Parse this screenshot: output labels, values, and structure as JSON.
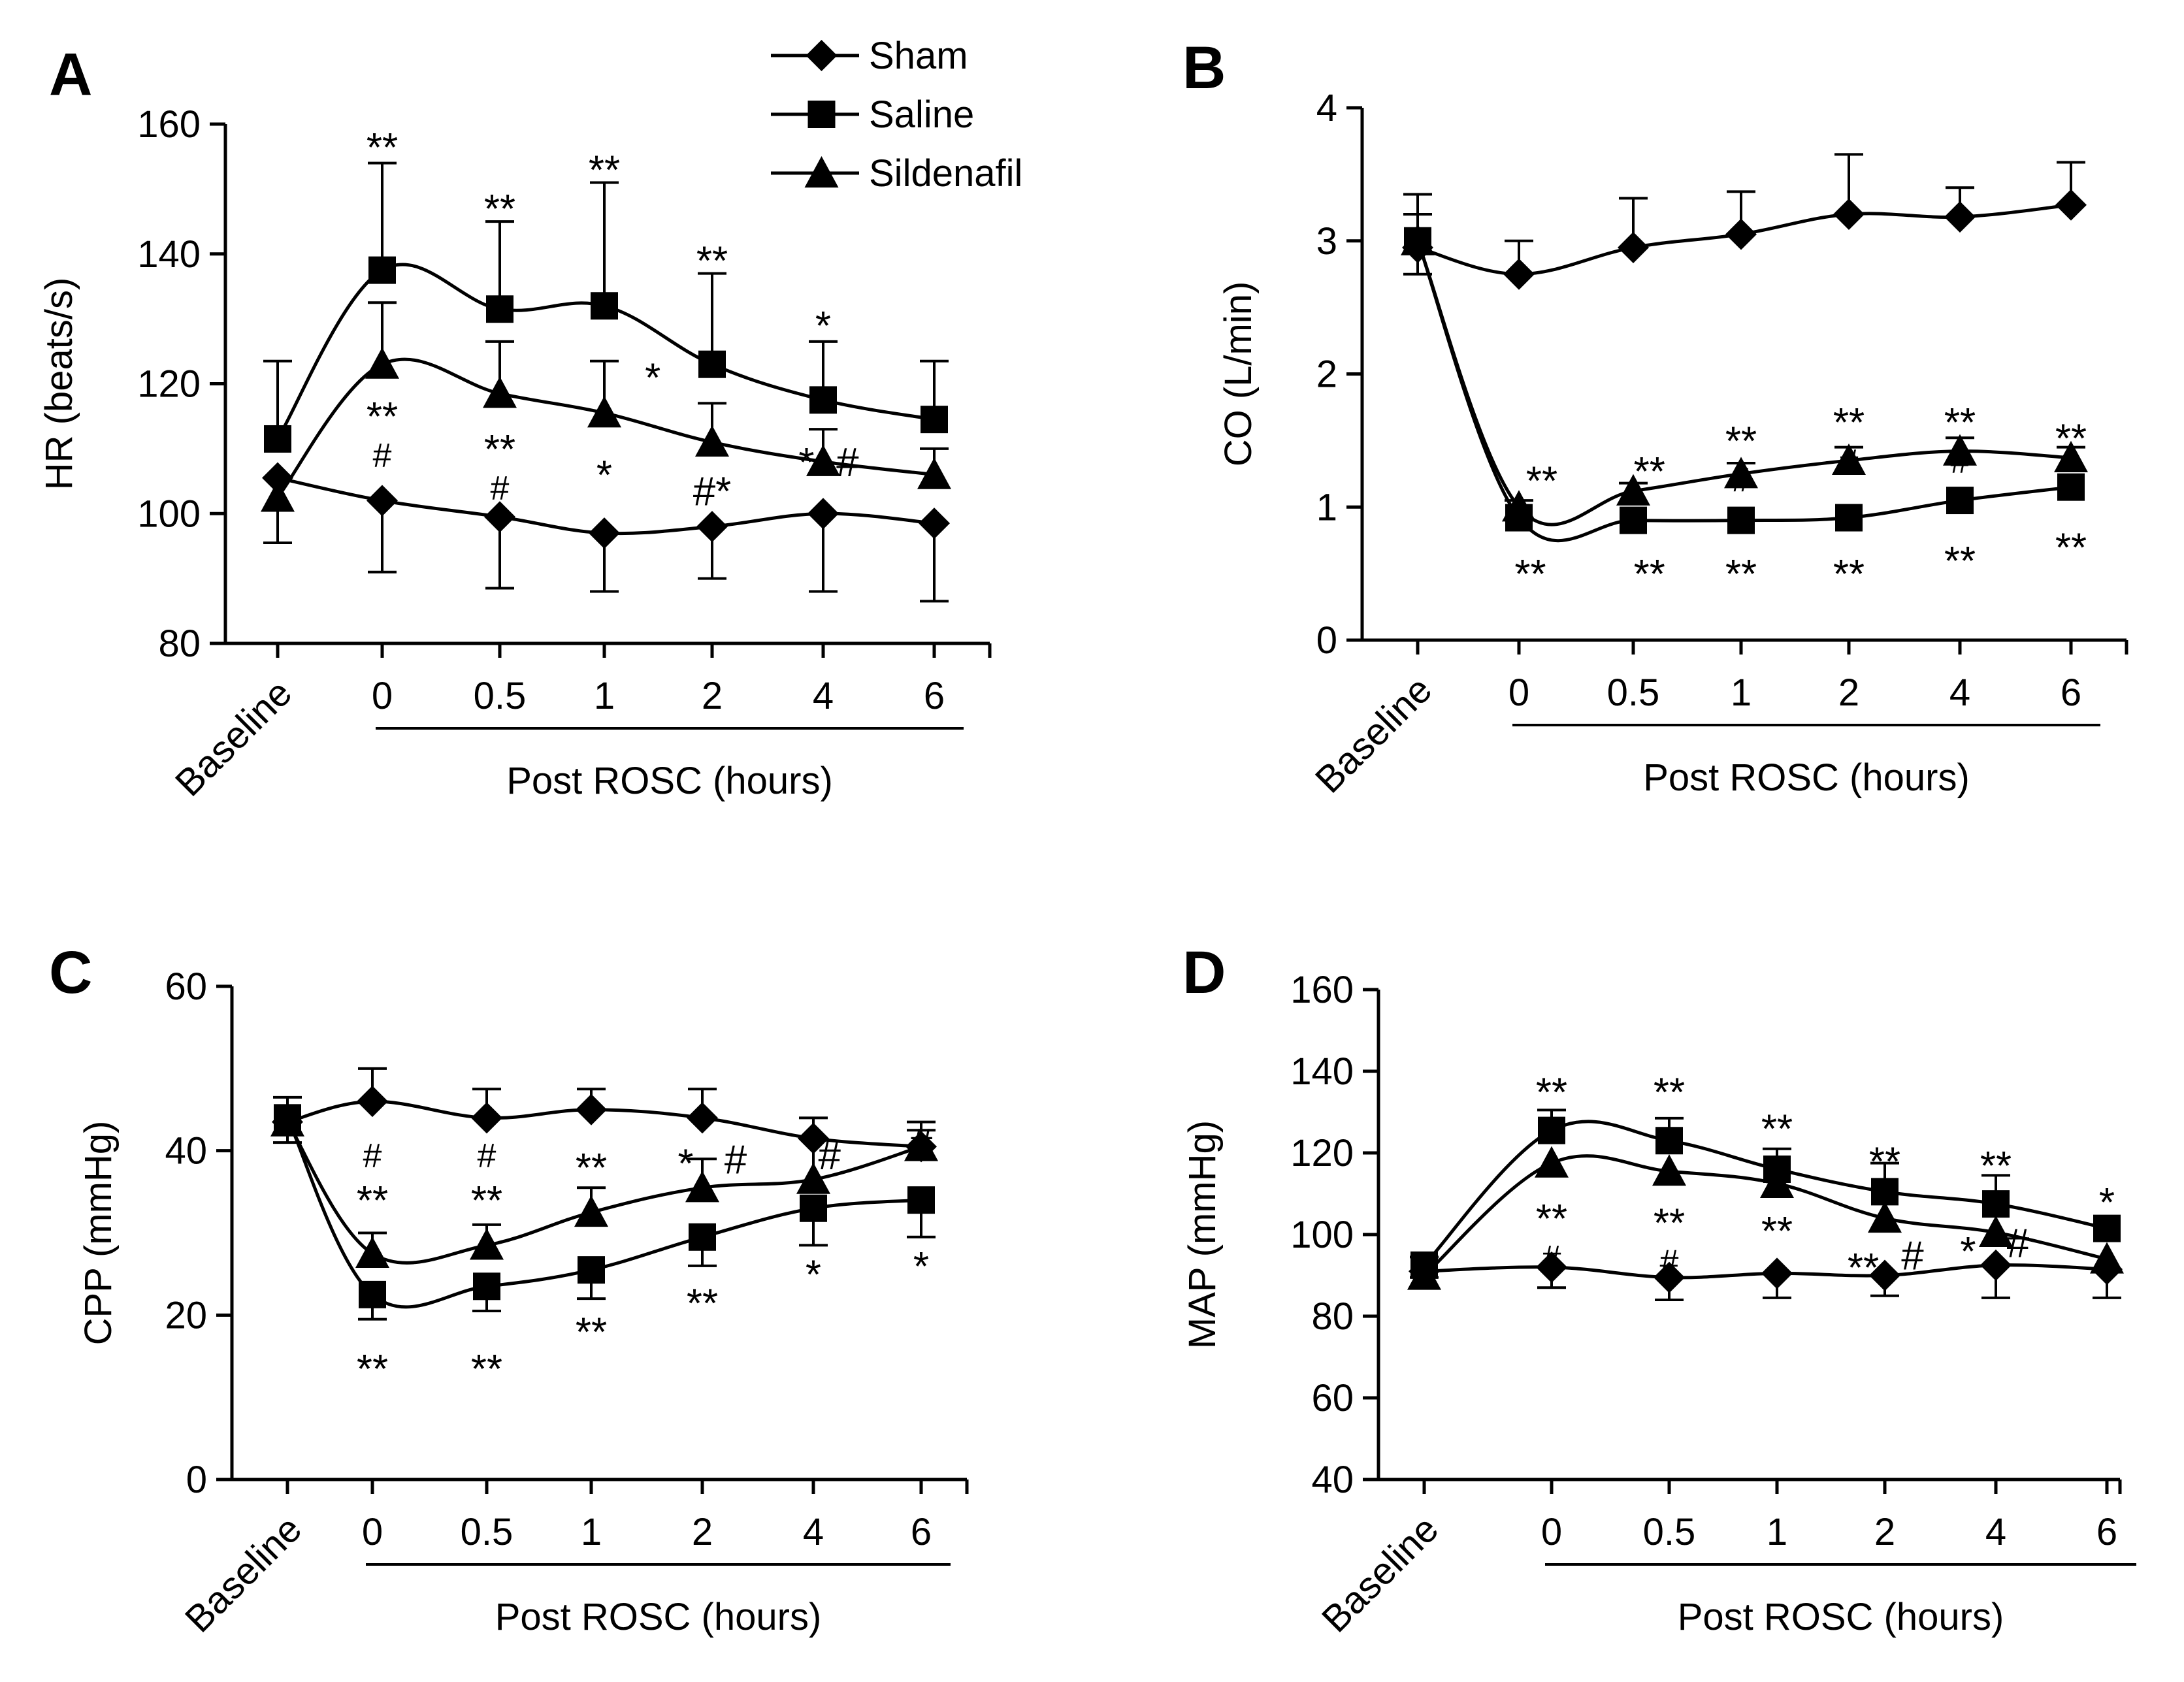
{
  "legend": {
    "entries": [
      {
        "name": "Sham",
        "marker": "diamond"
      },
      {
        "name": "Saline",
        "marker": "square"
      },
      {
        "name": "Sildenafil",
        "marker": "triangle"
      }
    ]
  },
  "chart_data": [
    {
      "id": "A",
      "type": "line",
      "panel_letter": "A",
      "ylabel": "HR (beats/s)",
      "xlabel": "Post ROSC (hours)",
      "categories": [
        "Baseline",
        "0",
        "0.5",
        "1",
        "2",
        "4",
        "6"
      ],
      "ylim": [
        80,
        160
      ],
      "yticks": [
        80,
        100,
        120,
        140,
        160
      ],
      "series": [
        {
          "name": "Sham",
          "marker": "diamond",
          "values": [
            105.5,
            102,
            99.5,
            97,
            98,
            100,
            98.5
          ],
          "errors": [
            [
              -10,
              0
            ],
            [
              -11,
              0
            ],
            [
              -11,
              0
            ],
            [
              -9,
              0
            ],
            [
              -8,
              0
            ],
            [
              -12,
              0
            ],
            [
              -12,
              0
            ]
          ]
        },
        {
          "name": "Saline",
          "marker": "square",
          "values": [
            111.5,
            137.5,
            131.5,
            132,
            123,
            117.5,
            114.5
          ],
          "errors": [
            [
              0,
              12
            ],
            [
              0,
              16.5
            ],
            [
              0,
              13.5
            ],
            [
              0,
              19
            ],
            [
              0,
              14
            ],
            [
              0,
              9
            ],
            [
              0,
              9
            ]
          ]
        },
        {
          "name": "Sildenafil",
          "marker": "triangle",
          "values": [
            102.5,
            123,
            118.5,
            115.5,
            111,
            108,
            106
          ],
          "errors": [
            [
              0,
              0
            ],
            [
              0,
              9.5
            ],
            [
              0,
              8
            ],
            [
              0,
              8
            ],
            [
              0,
              6
            ],
            [
              0,
              5
            ],
            [
              0,
              4
            ]
          ]
        }
      ],
      "annotations": [
        {
          "text": "**",
          "cat": 1,
          "y": 156.5
        },
        {
          "text": "**",
          "cat": 2,
          "y": 147
        },
        {
          "text": "**",
          "cat": 3,
          "y": 153
        },
        {
          "text": "**",
          "cat": 4,
          "y": 139
        },
        {
          "text": "*",
          "cat": 5,
          "y": 129
        },
        {
          "text": "*",
          "cat": 3.45,
          "y": 121
        },
        {
          "text": "**",
          "cat": 1,
          "y": 115,
          "sub": "#"
        },
        {
          "text": "**",
          "cat": 2,
          "y": 110,
          "sub": "#"
        },
        {
          "text": "*",
          "cat": 3,
          "y": 106
        },
        {
          "text": "#*",
          "cat": 4,
          "y": 103.5
        },
        {
          "text": "*",
          "cat": 4.85,
          "y": 108
        },
        {
          "text": "#",
          "cat": 5.22,
          "y": 108
        }
      ]
    },
    {
      "id": "B",
      "type": "line",
      "panel_letter": "B",
      "ylabel": "CO (L/min)",
      "xlabel": "Post ROSC (hours)",
      "categories": [
        "Baseline",
        "0",
        "0.5",
        "1",
        "2",
        "4",
        "6"
      ],
      "ylim": [
        0,
        4
      ],
      "yticks": [
        0,
        1,
        2,
        3,
        4
      ],
      "series": [
        {
          "name": "Sham",
          "marker": "diamond",
          "values": [
            2.95,
            2.75,
            2.95,
            3.05,
            3.2,
            3.18,
            3.27
          ],
          "errors": [
            [
              0,
              0.4
            ],
            [
              0,
              0.25
            ],
            [
              0,
              0.37
            ],
            [
              0,
              0.32
            ],
            [
              0,
              0.45
            ],
            [
              0,
              0.22
            ],
            [
              0,
              0.32
            ]
          ]
        },
        {
          "name": "Saline",
          "marker": "square",
          "values": [
            3.0,
            0.92,
            0.9,
            0.9,
            0.92,
            1.05,
            1.15
          ],
          "errors": [
            [
              -0.25,
              0.2
            ],
            [
              0,
              0
            ],
            [
              0,
              0
            ],
            [
              0,
              0
            ],
            [
              0,
              0
            ],
            [
              0,
              0
            ],
            [
              0,
              0
            ]
          ]
        },
        {
          "name": "Sildenafil",
          "marker": "triangle",
          "values": [
            3.0,
            1.0,
            1.12,
            1.25,
            1.35,
            1.42,
            1.37
          ],
          "errors": [
            [
              0,
              0
            ],
            [
              0,
              0.05
            ],
            [
              0,
              0.06
            ],
            [
              0,
              0.08
            ],
            [
              0,
              0.1
            ],
            [
              0,
              0.1
            ],
            [
              0,
              0.08
            ]
          ]
        }
      ],
      "annotations": [
        {
          "text": "**",
          "cat": 1.2,
          "y": 1.2
        },
        {
          "text": "**",
          "cat": 2.15,
          "y": 1.27
        },
        {
          "text": "**",
          "cat": 3,
          "y": 1.5,
          "sub": "#"
        },
        {
          "text": "**",
          "cat": 4,
          "y": 1.64,
          "sub": "#"
        },
        {
          "text": "**",
          "cat": 5,
          "y": 1.64,
          "sub": "#"
        },
        {
          "text": "**",
          "cat": 6,
          "y": 1.52
        },
        {
          "text": "**",
          "cat": 1.1,
          "y": 0.5
        },
        {
          "text": "**",
          "cat": 2.15,
          "y": 0.5
        },
        {
          "text": "**",
          "cat": 3,
          "y": 0.5
        },
        {
          "text": "**",
          "cat": 4,
          "y": 0.5
        },
        {
          "text": "**",
          "cat": 5,
          "y": 0.6
        },
        {
          "text": "**",
          "cat": 6,
          "y": 0.7
        }
      ]
    },
    {
      "id": "C",
      "type": "line",
      "panel_letter": "C",
      "ylabel": "CPP (mmHg)",
      "xlabel": "Post ROSC (hours)",
      "categories": [
        "Baseline",
        "0",
        "0.5",
        "1",
        "2",
        "4",
        "6"
      ],
      "ylim": [
        0,
        60
      ],
      "yticks": [
        0,
        20,
        40,
        60
      ],
      "series": [
        {
          "name": "Sham",
          "marker": "diamond",
          "values": [
            43.5,
            46,
            44,
            45,
            44,
            41.5,
            40.5
          ],
          "errors": [
            [
              0,
              0
            ],
            [
              0,
              4
            ],
            [
              0,
              3.5
            ],
            [
              0,
              2.5
            ],
            [
              0,
              3.5
            ],
            [
              0,
              2.5
            ],
            [
              0,
              3
            ]
          ]
        },
        {
          "name": "Saline",
          "marker": "square",
          "values": [
            44,
            22.5,
            23.5,
            25.5,
            29.5,
            33,
            34
          ],
          "errors": [
            [
              -3,
              2.5
            ],
            [
              -3,
              0
            ],
            [
              -3,
              0
            ],
            [
              -3.5,
              0
            ],
            [
              -3.5,
              0
            ],
            [
              -4.5,
              0
            ],
            [
              -4.5,
              0
            ]
          ]
        },
        {
          "name": "Sildenafil",
          "marker": "triangle",
          "values": [
            43.5,
            27.5,
            28.5,
            32.5,
            35.5,
            36.5,
            40.5
          ],
          "errors": [
            [
              0,
              0
            ],
            [
              0,
              2.5
            ],
            [
              0,
              2.5
            ],
            [
              0,
              3
            ],
            [
              0,
              3.5
            ],
            [
              0,
              5
            ],
            [
              0,
              2
            ]
          ]
        }
      ],
      "annotations": [
        {
          "text": "**",
          "cat": 1,
          "y": 34,
          "sub_top": "#"
        },
        {
          "text": "**",
          "cat": 2,
          "y": 34,
          "sub_top": "#"
        },
        {
          "text": "**",
          "cat": 3,
          "y": 38
        },
        {
          "text": "*",
          "cat": 3.85,
          "y": 38.5
        },
        {
          "text": "#",
          "cat": 4.3,
          "y": 39
        },
        {
          "text": "#",
          "cat": 5.15,
          "y": 39.5
        },
        {
          "text": "#",
          "cat": 6.2,
          "y": 41
        },
        {
          "text": "**",
          "cat": 1,
          "y": 13.5
        },
        {
          "text": "**",
          "cat": 2,
          "y": 13.5
        },
        {
          "text": "**",
          "cat": 3,
          "y": 18
        },
        {
          "text": "**",
          "cat": 4,
          "y": 21.5
        },
        {
          "text": "*",
          "cat": 5,
          "y": 25
        },
        {
          "text": "*",
          "cat": 6,
          "y": 26
        }
      ]
    },
    {
      "id": "D",
      "type": "line",
      "panel_letter": "D",
      "ylabel": "MAP (mmHg)",
      "xlabel": "Post ROSC (hours)",
      "categories": [
        "Baseline",
        "0",
        "0.5",
        "1",
        "2",
        "4",
        "6"
      ],
      "ylim": [
        40,
        160
      ],
      "yticks": [
        40,
        60,
        80,
        100,
        120,
        140,
        160
      ],
      "series": [
        {
          "name": "Sham",
          "marker": "diamond",
          "values": [
            91,
            92,
            89.5,
            90.5,
            90,
            92.5,
            91.5
          ],
          "errors": [
            [
              0,
              0
            ],
            [
              -5,
              0
            ],
            [
              -5.5,
              0
            ],
            [
              -6,
              0
            ],
            [
              -5,
              0
            ],
            [
              -8,
              0
            ],
            [
              -7,
              0
            ]
          ]
        },
        {
          "name": "Saline",
          "marker": "square",
          "values": [
            92.5,
            125.5,
            123,
            116,
            110.5,
            107.5,
            101.5
          ],
          "errors": [
            [
              -3,
              2
            ],
            [
              0,
              5
            ],
            [
              0,
              5.5
            ],
            [
              0,
              5
            ],
            [
              0,
              7
            ],
            [
              0,
              7
            ],
            [
              0,
              0
            ]
          ]
        },
        {
          "name": "Sildenafil",
          "marker": "triangle",
          "values": [
            90,
            117.5,
            115.5,
            112.5,
            104,
            100.5,
            94
          ],
          "errors": [
            [
              0,
              0
            ],
            [
              0,
              0
            ],
            [
              0,
              0
            ],
            [
              0,
              0
            ],
            [
              0,
              0
            ],
            [
              0,
              0
            ],
            [
              0,
              0
            ]
          ]
        }
      ],
      "annotations": [
        {
          "text": "**",
          "cat": 1,
          "y": 135
        },
        {
          "text": "**",
          "cat": 2,
          "y": 135
        },
        {
          "text": "**",
          "cat": 3,
          "y": 126
        },
        {
          "text": "**",
          "cat": 4,
          "y": 118
        },
        {
          "text": "**",
          "cat": 5,
          "y": 117
        },
        {
          "text": "*",
          "cat": 6,
          "y": 108
        },
        {
          "text": "**",
          "cat": 1,
          "y": 104,
          "sub": "#"
        },
        {
          "text": "**",
          "cat": 2,
          "y": 103,
          "sub": "#"
        },
        {
          "text": "**",
          "cat": 3,
          "y": 101
        },
        {
          "text": "**",
          "cat": 3.8,
          "y": 92
        },
        {
          "text": "#",
          "cat": 4.25,
          "y": 95
        },
        {
          "text": "*",
          "cat": 4.75,
          "y": 96
        },
        {
          "text": "#",
          "cat": 5.2,
          "y": 98
        }
      ]
    }
  ]
}
